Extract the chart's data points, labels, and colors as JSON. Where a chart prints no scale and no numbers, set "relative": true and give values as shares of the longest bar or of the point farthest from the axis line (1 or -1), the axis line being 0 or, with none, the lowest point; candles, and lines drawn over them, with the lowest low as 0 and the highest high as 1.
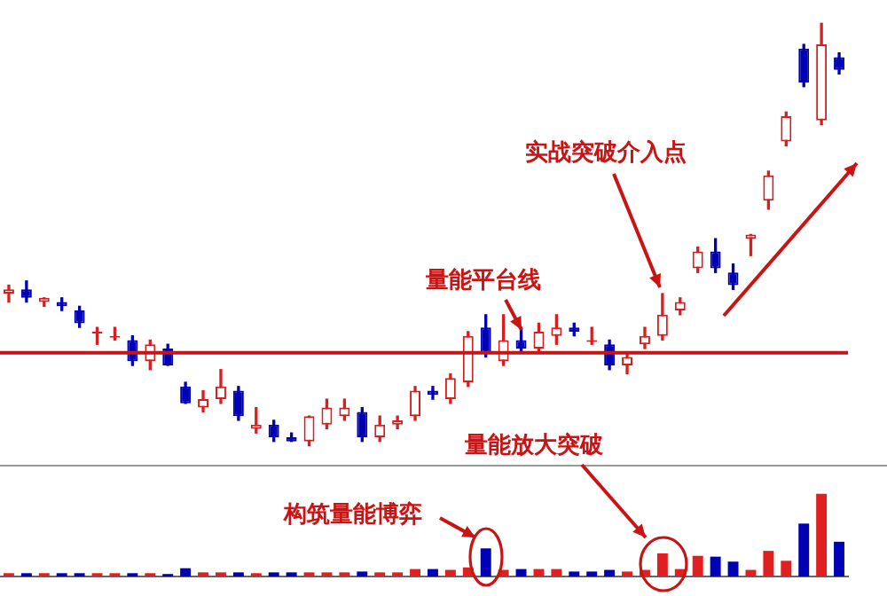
{
  "chart_data": [
    {
      "type": "candlestick",
      "relative": true,
      "categories": [
        null,
        null,
        null,
        null,
        null,
        null,
        null,
        null,
        null,
        null,
        null,
        null,
        null,
        null,
        null,
        null,
        null,
        null,
        null,
        null,
        null,
        null,
        null,
        null,
        null,
        null,
        null,
        null,
        null,
        null,
        null,
        null,
        null,
        null,
        null,
        null,
        null,
        null,
        null,
        null,
        null,
        null,
        null,
        null,
        null,
        null,
        null,
        null
      ],
      "ohlc": [
        [
          0.36,
          0.38,
          0.34,
          0.37
        ],
        [
          0.37,
          0.39,
          0.34,
          0.35
        ],
        [
          0.34,
          0.35,
          0.33,
          0.35
        ],
        [
          0.34,
          0.35,
          0.32,
          0.33
        ],
        [
          0.32,
          0.33,
          0.28,
          0.29
        ],
        [
          0.27,
          0.28,
          0.24,
          0.27
        ],
        [
          0.26,
          0.28,
          0.25,
          0.26
        ],
        [
          0.25,
          0.26,
          0.19,
          0.2
        ],
        [
          0.2,
          0.25,
          0.18,
          0.24
        ],
        [
          0.23,
          0.24,
          0.19,
          0.19
        ],
        [
          0.14,
          0.15,
          0.1,
          0.1
        ],
        [
          0.09,
          0.13,
          0.08,
          0.11
        ],
        [
          0.11,
          0.18,
          0.1,
          0.14
        ],
        [
          0.13,
          0.14,
          0.06,
          0.07
        ],
        [
          0.04,
          0.09,
          0.03,
          0.05
        ],
        [
          0.05,
          0.06,
          0.01,
          0.02
        ],
        [
          0.02,
          0.03,
          0.01,
          0.01
        ],
        [
          0.01,
          0.07,
          0,
          0.07
        ],
        [
          0.05,
          0.11,
          0.04,
          0.09
        ],
        [
          0.07,
          0.11,
          0.06,
          0.09
        ],
        [
          0.08,
          0.09,
          0.01,
          0.02
        ],
        [
          0.02,
          0.07,
          0.01,
          0.05
        ],
        [
          0.05,
          0.07,
          0.04,
          0.06
        ],
        [
          0.07,
          0.14,
          0.06,
          0.13
        ],
        [
          0.13,
          0.14,
          0.11,
          0.12
        ],
        [
          0.11,
          0.17,
          0.1,
          0.16
        ],
        [
          0.15,
          0.27,
          0.14,
          0.26
        ],
        [
          0.28,
          0.31,
          0.21,
          0.22
        ],
        [
          0.2,
          0.31,
          0.19,
          0.25
        ],
        [
          0.25,
          0.28,
          0.22,
          0.23
        ],
        [
          0.23,
          0.29,
          0.22,
          0.27
        ],
        [
          0.26,
          0.31,
          0.24,
          0.28
        ],
        [
          0.28,
          0.29,
          0.26,
          0.27
        ],
        [
          0.25,
          0.28,
          0.24,
          0.25
        ],
        [
          0.24,
          0.25,
          0.18,
          0.19
        ],
        [
          0.19,
          0.22,
          0.17,
          0.21
        ],
        [
          0.24,
          0.28,
          0.23,
          0.26
        ],
        [
          0.26,
          0.36,
          0.25,
          0.31
        ],
        [
          0.32,
          0.35,
          0.31,
          0.34
        ],
        [
          0.42,
          0.47,
          0.41,
          0.46
        ],
        [
          0.46,
          0.49,
          0.41,
          0.42
        ],
        [
          0.41,
          0.43,
          0.37,
          0.38
        ],
        [
          0.49,
          0.5,
          0.45,
          0.5
        ],
        [
          0.58,
          0.65,
          0.56,
          0.64
        ],
        [
          0.72,
          0.79,
          0.71,
          0.78
        ],
        [
          0.94,
          0.95,
          0.85,
          0.86
        ],
        [
          0.77,
          1,
          0.76,
          0.95
        ],
        [
          0.92,
          0.93,
          0.88,
          0.89
        ]
      ],
      "ref_lines": [
        {
          "axis": "y",
          "value": 0.22,
          "label": "量能平台线",
          "color": "#c81414"
        }
      ],
      "annotations": [
        "实战突破介入点"
      ]
    },
    {
      "type": "bar",
      "relative": true,
      "categories": [
        null,
        null,
        null,
        null,
        null,
        null,
        null,
        null,
        null,
        null,
        null,
        null,
        null,
        null,
        null,
        null,
        null,
        null,
        null,
        null,
        null,
        null,
        null,
        null,
        null,
        null,
        null,
        null,
        null,
        null,
        null,
        null,
        null,
        null,
        null,
        null,
        null,
        null,
        null,
        null,
        null,
        null,
        null,
        null,
        null,
        null,
        null,
        null
      ],
      "values": [
        0.04,
        0.04,
        0.04,
        0.04,
        0.04,
        0.04,
        0.04,
        0.04,
        0.04,
        0.03,
        0.1,
        0.05,
        0.05,
        0.05,
        0.04,
        0.05,
        0.05,
        0.05,
        0.05,
        0.05,
        0.06,
        0.05,
        0.05,
        0.09,
        0.09,
        0.08,
        0.11,
        0.34,
        0.08,
        0.09,
        0.09,
        0.09,
        0.06,
        0.06,
        0.08,
        0.06,
        0.08,
        0.28,
        0.09,
        0.25,
        0.24,
        0.18,
        0.08,
        0.31,
        0.19,
        0.64,
        1,
        0.42
      ],
      "colors": [
        "#e02020",
        "#0000b4",
        "#e02020",
        "#0000b4",
        "#0000b4",
        "#e02020",
        "#e02020",
        "#0000b4",
        "#e02020",
        "#0000b4",
        "#0000b4",
        "#e02020",
        "#e02020",
        "#0000b4",
        "#e02020",
        "#0000b4",
        "#0000b4",
        "#e02020",
        "#e02020",
        "#e02020",
        "#0000b4",
        "#e02020",
        "#e02020",
        "#e02020",
        "#0000b4",
        "#e02020",
        "#e02020",
        "#0000b4",
        "#e02020",
        "#0000b4",
        "#e02020",
        "#e02020",
        "#0000b4",
        "#0000b4",
        "#0000b4",
        "#e02020",
        "#e02020",
        "#e02020",
        "#e02020",
        "#e02020",
        "#0000b4",
        "#0000b4",
        "#e02020",
        "#e02020",
        "#e02020",
        "#0000b4",
        "#e02020",
        "#0000b4"
      ],
      "annotations": [
        "量能放大突破",
        "构筑量能博弈"
      ]
    }
  ]
}
